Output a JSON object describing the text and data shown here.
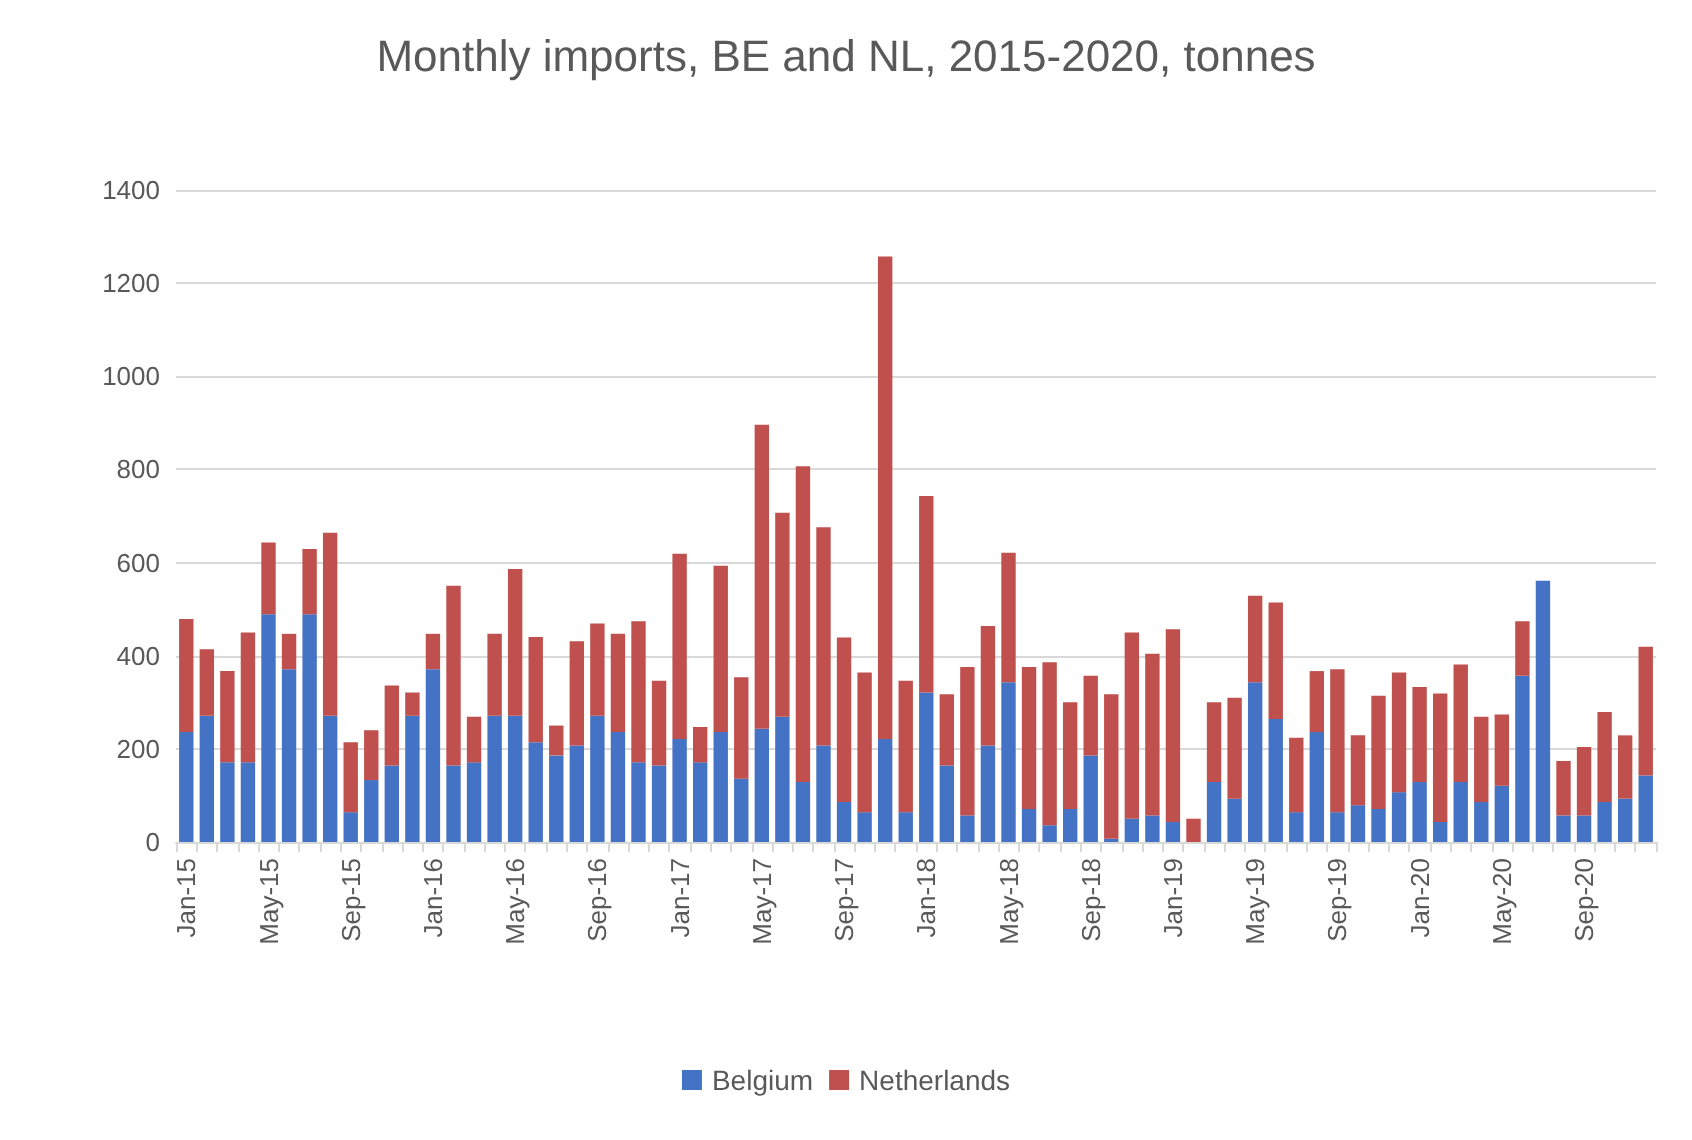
{
  "chart_data": {
    "type": "bar",
    "title": "Monthly imports, BE and NL, 2015-2020, tonnes",
    "stacked": true,
    "categories": [
      "Jan-15",
      null,
      null,
      null,
      "May-15",
      null,
      null,
      null,
      "Sep-15",
      null,
      null,
      null,
      "Jan-16",
      null,
      null,
      null,
      "May-16",
      null,
      null,
      null,
      "Sep-16",
      null,
      null,
      null,
      "Jan-17",
      null,
      null,
      null,
      "May-17",
      null,
      null,
      null,
      "Sep-17",
      null,
      null,
      null,
      "Jan-18",
      null,
      null,
      null,
      "May-18",
      null,
      null,
      null,
      "Sep-18",
      null,
      null,
      null,
      "Jan-19",
      null,
      null,
      null,
      "May-19",
      null,
      null,
      null,
      "Sep-19",
      null,
      null,
      null,
      "Jan-20",
      null,
      null,
      null,
      "May-20",
      null,
      null,
      null,
      "Sep-20",
      null,
      null,
      null
    ],
    "series": [
      {
        "name": "Belgium",
        "color": "#4472c4",
        "values": [
          236,
          271,
          171,
          171,
          489,
          371,
          489,
          271,
          64,
          133,
          164,
          271,
          371,
          164,
          171,
          271,
          271,
          214,
          186,
          207,
          271,
          236,
          171,
          164,
          221,
          171,
          236,
          136,
          243,
          269,
          129,
          207,
          86,
          64,
          221,
          64,
          321,
          164,
          57,
          207,
          343,
          71,
          36,
          71,
          186,
          7,
          50,
          57,
          43,
          0,
          129,
          93,
          343,
          264,
          64,
          236,
          64,
          79,
          71,
          107,
          129,
          43,
          129,
          86,
          121,
          357,
          561,
          57,
          57,
          86,
          93,
          143
        ]
      },
      {
        "name": "Netherlands",
        "color": "#c0504d",
        "values": [
          243,
          143,
          196,
          279,
          154,
          76,
          140,
          393,
          150,
          107,
          172,
          50,
          76,
          386,
          98,
          176,
          315,
          226,
          64,
          224,
          198,
          211,
          303,
          182,
          398,
          76,
          357,
          218,
          653,
          438,
          678,
          469,
          353,
          300,
          1036,
          282,
          422,
          153,
          319,
          257,
          278,
          305,
          350,
          229,
          171,
          310,
          400,
          347,
          414,
          50,
          171,
          217,
          186,
          250,
          160,
          131,
          307,
          150,
          243,
          257,
          204,
          276,
          252,
          183,
          153,
          117,
          0,
          117,
          147,
          193,
          136,
          276
        ]
      }
    ],
    "ylim": [
      0,
      1400
    ],
    "yticks": [
      0,
      200,
      400,
      600,
      800,
      1000,
      1200,
      1400
    ],
    "grid": "y",
    "legend": "bottom"
  }
}
